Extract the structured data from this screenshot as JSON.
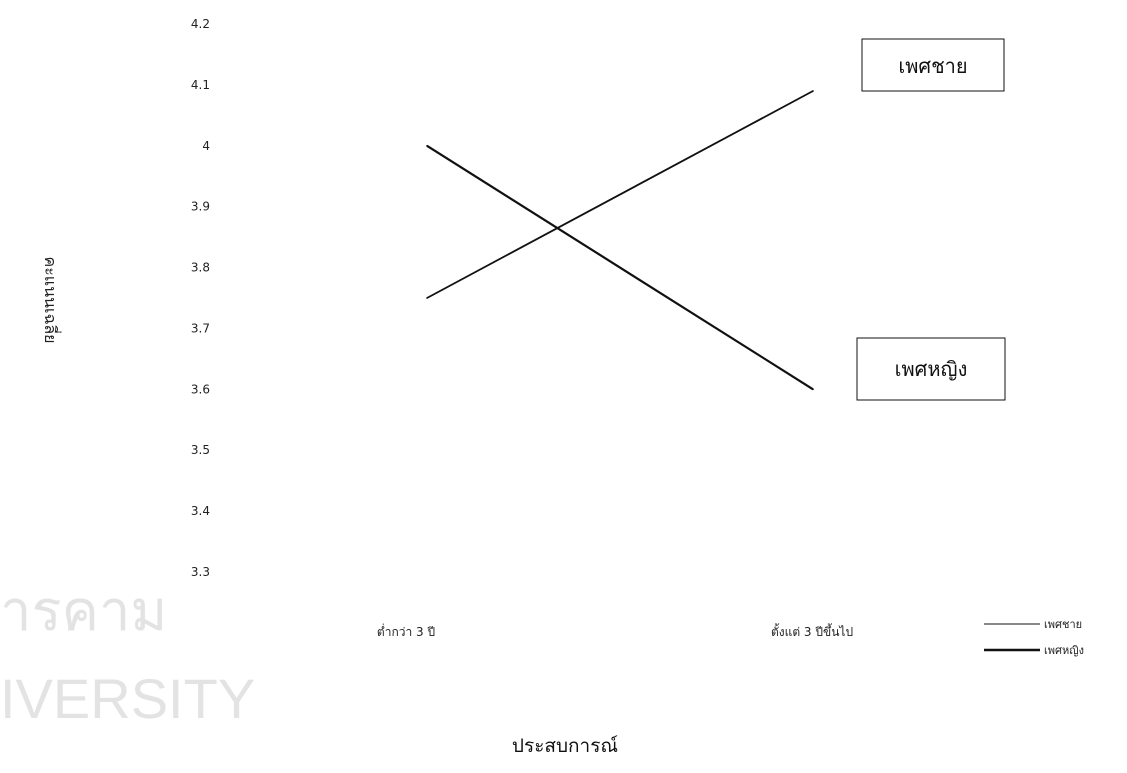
{
  "watermark": {
    "line1": "ารคาม",
    "line2": "IVERSITY"
  },
  "chart_data": {
    "type": "line",
    "title": "",
    "xlabel": "ประสบการณ์",
    "ylabel": "คะแนนเฉลี่ย",
    "categories": [
      "ต่ำกว่า 3 ปี",
      "ตั้งแต่ 3 ปีขึ้นไป"
    ],
    "ylim": [
      3.3,
      4.2
    ],
    "yticks": [
      "4.2",
      "4.1",
      "4",
      "3.9",
      "3.8",
      "3.7",
      "3.6",
      "3.5",
      "3.4",
      "3.3"
    ],
    "series": [
      {
        "name": "เพศชาย",
        "values": [
          3.75,
          4.09
        ],
        "color": "#111111"
      },
      {
        "name": "เพศหญิง",
        "values": [
          4.0,
          3.6
        ],
        "color": "#111111"
      }
    ],
    "annotations": [
      "เพศชาย",
      "เพศหญิง"
    ],
    "legend": {
      "position": "bottom-right",
      "entries": [
        "เพศชาย",
        "เพศหญิง"
      ]
    },
    "grid": false
  }
}
